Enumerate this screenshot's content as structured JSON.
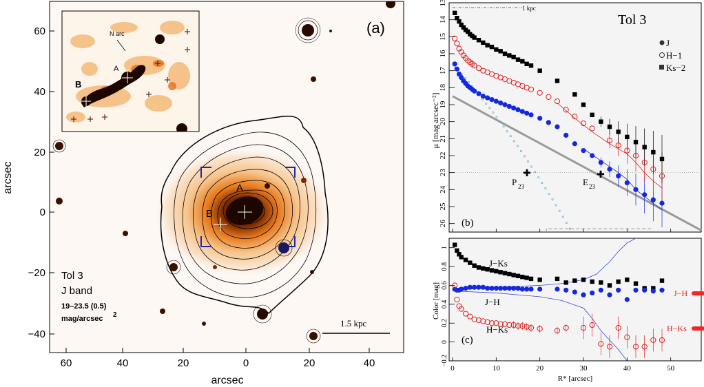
{
  "panel_a": {
    "label": "(a)",
    "xlabel": "arcsec",
    "ylabel": "arcsec",
    "xticks": [
      "60",
      "40",
      "20",
      "0",
      "20",
      "40"
    ],
    "yticks": [
      "60",
      "40",
      "20",
      "0",
      "−20",
      "−40"
    ],
    "info_name": "Tol 3",
    "info_band": "J band",
    "info_range": "19–23.5 (0.5)",
    "info_unit": "mag/arcsec",
    "info_unit_exp": "2",
    "scale_label": "1.5 kpc",
    "label_A": "A",
    "label_B": "B",
    "inset_narc": "N arc",
    "inset_A": "A",
    "inset_B": "B",
    "colors": {
      "contour": "#000000",
      "inset_box": "#1b2aa8",
      "background": "#fdf8f4",
      "glow": "#f3b36a",
      "core": "#3a0d00"
    }
  },
  "panel_b": {
    "label": "(b)",
    "title": "Tol 3",
    "scale_note": "1 kpc",
    "ylabel": "μ [mag arcsec⁻²]",
    "legend": [
      "J",
      "H−1",
      "Ks−2"
    ],
    "annot_P": "P",
    "annot_P_sub": "23",
    "annot_E": "E",
    "annot_E_sub": "23",
    "yticks": [
      "13",
      "14",
      "15",
      "16",
      "17",
      "18",
      "19",
      "20",
      "21",
      "22",
      "23",
      "24",
      "25",
      "26"
    ]
  },
  "panel_c": {
    "label": "(c)",
    "ylabel": "Color [mag]",
    "xlabel": "R* [arcsec]",
    "xticks": [
      "0",
      "10",
      "20",
      "30",
      "40",
      "50"
    ],
    "yticks": [
      "1",
      "0.8",
      "0.6",
      "0.4",
      "0.2",
      "0",
      "−0.2"
    ],
    "curve_labels": [
      "J−Ks",
      "J−H",
      "H−Ks"
    ],
    "side_labels": [
      "J−H",
      "H−Ks"
    ]
  },
  "chart_data": [
    {
      "type": "scatter",
      "title": "Tol 3",
      "xlabel": "R* [arcsec]",
      "ylabel": "μ [mag arcsec⁻²]",
      "xlim": [
        0,
        57
      ],
      "ylim": [
        26.5,
        13
      ],
      "series": [
        {
          "name": "J",
          "color": "#1428e0",
          "x": [
            0.5,
            1,
            1.5,
            2,
            2.5,
            3,
            3.5,
            4,
            4.5,
            5,
            6,
            7,
            8,
            9,
            10,
            11,
            12,
            13,
            14,
            15,
            16,
            17,
            18,
            20,
            22,
            24,
            26,
            28,
            30,
            32,
            34,
            36,
            38,
            40,
            42,
            44,
            46,
            48
          ],
          "y": [
            16.6,
            16.9,
            17.2,
            17.4,
            17.6,
            17.75,
            17.9,
            18.0,
            18.1,
            18.2,
            18.35,
            18.5,
            18.6,
            18.7,
            18.8,
            18.9,
            19.0,
            19.1,
            19.2,
            19.3,
            19.4,
            19.5,
            19.6,
            19.8,
            20.05,
            20.3,
            20.8,
            21.3,
            21.7,
            22.0,
            22.4,
            22.8,
            23.2,
            23.6,
            24.0,
            24.3,
            24.6,
            24.8
          ]
        },
        {
          "name": "H−1",
          "color": "#e02020",
          "x": [
            0.5,
            1,
            1.5,
            2,
            2.5,
            3,
            3.5,
            4,
            4.5,
            5,
            6,
            7,
            8,
            9,
            10,
            11,
            12,
            13,
            14,
            15,
            16,
            17,
            18,
            20,
            22,
            24,
            26,
            28,
            30,
            32,
            36,
            38,
            40,
            42,
            44,
            46,
            48
          ],
          "y": [
            15.1,
            15.4,
            15.7,
            15.9,
            16.1,
            16.25,
            16.4,
            16.5,
            16.6,
            16.7,
            16.85,
            17.0,
            17.1,
            17.2,
            17.3,
            17.4,
            17.5,
            17.6,
            17.7,
            17.8,
            17.9,
            18.0,
            18.1,
            18.3,
            18.55,
            18.8,
            19.3,
            19.7,
            20.1,
            20.4,
            21.1,
            21.4,
            21.7,
            22.0,
            22.4,
            22.8,
            23.2
          ]
        },
        {
          "name": "Ks−2",
          "color": "#000000",
          "x": [
            0.5,
            1,
            1.5,
            2,
            2.5,
            3,
            3.5,
            4,
            4.5,
            5,
            6,
            7,
            8,
            9,
            10,
            11,
            12,
            13,
            14,
            15,
            16,
            17,
            18,
            20,
            24,
            28,
            30,
            32,
            34,
            36,
            38,
            40,
            42,
            44,
            46,
            48
          ],
          "y": [
            13.6,
            13.9,
            14.1,
            14.3,
            14.45,
            14.6,
            14.7,
            14.85,
            14.95,
            15.05,
            15.2,
            15.35,
            15.5,
            15.6,
            15.75,
            15.85,
            16.0,
            16.1,
            16.2,
            16.35,
            16.45,
            16.6,
            16.7,
            17.0,
            17.6,
            18.4,
            19.0,
            19.6,
            20.0,
            20.3,
            20.6,
            20.9,
            21.2,
            21.5,
            21.8,
            22.2
          ]
        }
      ]
    },
    {
      "type": "scatter",
      "xlabel": "R* [arcsec]",
      "ylabel": "Color [mag]",
      "xlim": [
        0,
        57
      ],
      "ylim": [
        -0.2,
        1.1
      ],
      "series": [
        {
          "name": "J−Ks",
          "color": "#000000",
          "x": [
            0.5,
            1,
            1.5,
            2,
            3,
            4,
            5,
            6,
            7,
            8,
            9,
            10,
            11,
            12,
            13,
            14,
            15,
            16,
            17,
            18,
            20,
            24,
            26,
            28,
            30,
            32,
            34,
            36,
            38,
            40,
            42,
            44,
            46,
            48
          ],
          "y": [
            1.03,
            0.97,
            0.93,
            0.9,
            0.87,
            0.84,
            0.81,
            0.79,
            0.78,
            0.77,
            0.76,
            0.75,
            0.74,
            0.73,
            0.72,
            0.71,
            0.7,
            0.69,
            0.68,
            0.67,
            0.66,
            0.67,
            0.63,
            0.65,
            0.66,
            0.64,
            0.63,
            0.6,
            0.64,
            0.66,
            0.62,
            0.57,
            0.57,
            0.65
          ]
        },
        {
          "name": "J−H",
          "color": "#1428e0",
          "x": [
            0.5,
            1,
            1.5,
            2,
            3,
            4,
            5,
            6,
            7,
            8,
            9,
            10,
            11,
            12,
            13,
            14,
            15,
            16,
            17,
            18,
            20,
            24,
            26,
            28,
            30,
            32,
            34,
            36,
            38,
            40,
            42,
            44,
            46,
            48
          ],
          "y": [
            0.56,
            0.55,
            0.55,
            0.56,
            0.57,
            0.58,
            0.58,
            0.58,
            0.58,
            0.57,
            0.57,
            0.57,
            0.57,
            0.57,
            0.57,
            0.57,
            0.57,
            0.56,
            0.56,
            0.56,
            0.56,
            0.56,
            0.55,
            0.53,
            0.5,
            0.52,
            0.55,
            0.5,
            0.55,
            0.45,
            0.55,
            0.55,
            0.54,
            0.55
          ]
        },
        {
          "name": "H−Ks",
          "color": "#e02020",
          "x": [
            0.5,
            1,
            1.5,
            2,
            3,
            4,
            5,
            6,
            7,
            8,
            9,
            10,
            11,
            12,
            13,
            14,
            15,
            16,
            17,
            18,
            20,
            24,
            26,
            30,
            32,
            34,
            36,
            38,
            40,
            42,
            44,
            46,
            48
          ],
          "y": [
            0.6,
            0.45,
            0.38,
            0.35,
            0.3,
            0.27,
            0.24,
            0.23,
            0.22,
            0.21,
            0.2,
            0.2,
            0.19,
            0.19,
            0.18,
            0.18,
            0.17,
            0.17,
            0.16,
            0.15,
            0.14,
            0.12,
            0.15,
            0.15,
            0.18,
            -0.02,
            -0.05,
            0.15,
            0.05,
            -0.05,
            -0.05,
            0.02,
            0.02
          ]
        }
      ]
    }
  ]
}
